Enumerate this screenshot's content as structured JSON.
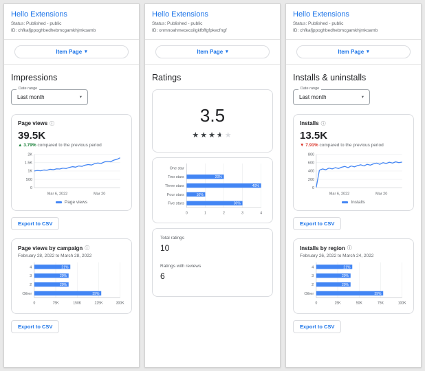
{
  "ui": {
    "item_page_label": "Item Page",
    "export_csv_label": "Export to CSV",
    "date_range_label": "Date range",
    "date_range_value": "Last month",
    "caret_glyph": "▾",
    "info_glyph": "ⓘ",
    "star_glyphs": "★★★★★"
  },
  "impressions_panel": {
    "title": "Hello Extensions",
    "status": "Status: Published - public",
    "id": "ID: chfkafjppoghbedhebmcgamkhjmkoamb",
    "section_title": "Impressions",
    "page_views": {
      "title": "Page views",
      "value": "39.5K",
      "delta_arrow": "▲",
      "delta_value": "3.79%",
      "delta_text": "compared to the previous period",
      "legend": "Page views"
    },
    "campaign": {
      "title": "Page views by campaign",
      "subtitle": "February 28, 2022 to March 28, 2022"
    }
  },
  "ratings_panel": {
    "title": "Hello Extensions",
    "status": "Status: Published - public",
    "id": "ID: onmnoahmececoilgkfbffgfpkecfngf",
    "section_title": "Ratings",
    "average": "3.5",
    "stars": 3.5,
    "summary": {
      "total_label": "Total ratings",
      "total_value": "10",
      "reviews_label": "Ratings with reviews",
      "reviews_value": "6"
    }
  },
  "installs_panel": {
    "title": "Hello Extensions",
    "status": "Status: Published - public",
    "id": "ID: chfkafjppoghbedhebmcgamkhjmkoamb",
    "section_title": "Installs & uninstalls",
    "installs": {
      "title": "Installs",
      "value": "13.5K",
      "delta_arrow": "▼",
      "delta_value": "7.91%",
      "delta_text": "compared to the previous period",
      "legend": "Installs"
    },
    "region": {
      "title": "Installs by region",
      "subtitle": "February 26, 2022 to March 24, 2022"
    }
  },
  "chart_data": [
    {
      "id": "page_views_line",
      "type": "line",
      "title": "Page views",
      "ylabel": "",
      "xlabel": "",
      "ylim": [
        0,
        2000
      ],
      "yticks": [
        "2K",
        "1.5K",
        "1K",
        "500",
        "0"
      ],
      "x_labels": [
        "Mar 6, 2022",
        "Mar 20"
      ],
      "values": [
        1000,
        1030,
        1010,
        1060,
        1050,
        1100,
        1080,
        1130,
        1120,
        1170,
        1150,
        1210,
        1260,
        1230,
        1300,
        1280,
        1350,
        1390,
        1360,
        1440,
        1480,
        1450,
        1540,
        1580,
        1550,
        1650,
        1700,
        1790
      ],
      "legend": "Page views",
      "color": "#4285f4"
    },
    {
      "id": "campaign_bars",
      "type": "bar",
      "title": "Page views by campaign",
      "categories": [
        "4",
        "3",
        "2",
        "Other"
      ],
      "value_labels": [
        "21%",
        "20%",
        "20%",
        "39%"
      ],
      "bar_fractions": [
        0.42,
        0.4,
        0.4,
        0.78
      ],
      "xticks": [
        "0",
        "75K",
        "150K",
        "225K",
        "300K"
      ]
    },
    {
      "id": "ratings_bars",
      "type": "bar",
      "title": "Ratings by star level",
      "categories": [
        "One star",
        "Two stars",
        "Three stars",
        "Four stars",
        "Five stars"
      ],
      "values": [
        0,
        2,
        4,
        1,
        3
      ],
      "value_labels": [
        "",
        "20%",
        "40%",
        "10%",
        "30%"
      ],
      "bar_fractions": [
        0,
        0.5,
        1,
        0.25,
        0.75
      ],
      "xticks": [
        "0",
        "1",
        "2",
        "3",
        "4"
      ],
      "xlim": [
        0,
        4
      ]
    },
    {
      "id": "installs_line",
      "type": "line",
      "title": "Installs",
      "ylabel": "",
      "xlabel": "",
      "ylim": [
        0,
        800
      ],
      "yticks": [
        "800",
        "600",
        "400",
        "200",
        "0"
      ],
      "x_labels": [
        "Mar 6, 2022",
        "Mar 20"
      ],
      "values": [
        10,
        420,
        450,
        430,
        470,
        450,
        480,
        460,
        490,
        510,
        480,
        520,
        500,
        530,
        550,
        520,
        560,
        540,
        570,
        590,
        560,
        600,
        580,
        610,
        590,
        620,
        600,
        615
      ],
      "legend": "Installs",
      "color": "#4285f4"
    },
    {
      "id": "region_bars",
      "type": "bar",
      "title": "Installs by region",
      "categories": [
        "4",
        "3",
        "2",
        "Other"
      ],
      "value_labels": [
        "21%",
        "20%",
        "20%",
        "39%"
      ],
      "bar_fractions": [
        0.42,
        0.4,
        0.4,
        0.78
      ],
      "xticks": [
        "0",
        "25K",
        "50K",
        "75K",
        "100K"
      ]
    }
  ]
}
